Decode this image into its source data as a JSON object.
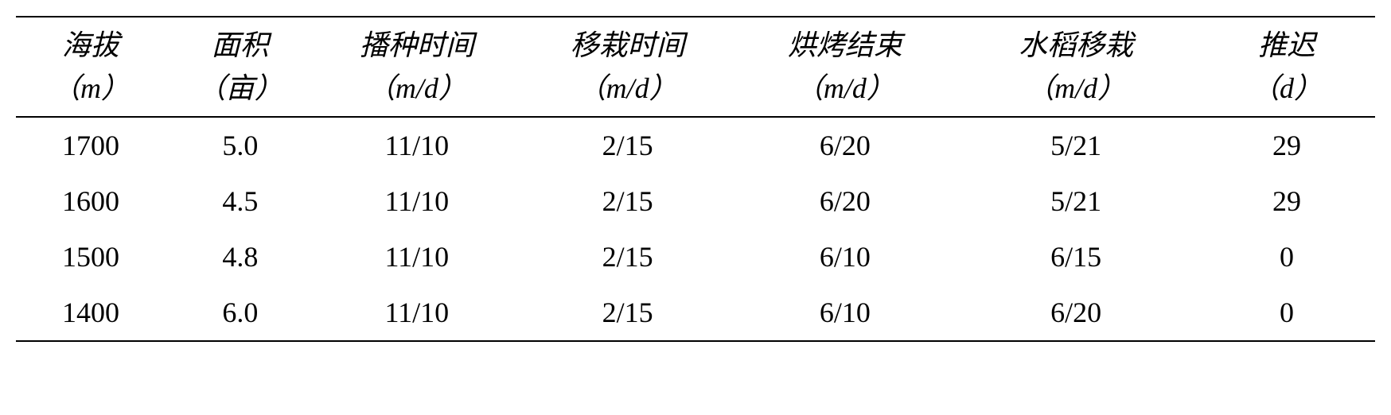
{
  "table": {
    "type": "table",
    "background_color": "#ffffff",
    "border_color": "#000000",
    "border_width": 2,
    "header_font": "KaiTi/STKaiti (italic Chinese serif)",
    "body_font": "Times New Roman / SimSun",
    "font_size": 36,
    "text_color": "#000000",
    "columns": [
      {
        "label": "海拔",
        "unit": "（m）",
        "width_pct": 11
      },
      {
        "label": "面积",
        "unit": "（亩）",
        "width_pct": 11
      },
      {
        "label": "播种时间",
        "unit": "（m/d）",
        "width_pct": 15
      },
      {
        "label": "移栽时间",
        "unit": "（m/d）",
        "width_pct": 16
      },
      {
        "label": "烘烤结束",
        "unit": "（m/d）",
        "width_pct": 16
      },
      {
        "label": "水稻移栽",
        "unit": "（m/d）",
        "width_pct": 18
      },
      {
        "label": "推迟",
        "unit": "（d）",
        "width_pct": 13
      }
    ],
    "rows": [
      [
        "1700",
        "5.0",
        "11/10",
        "2/15",
        "6/20",
        "5/21",
        "29"
      ],
      [
        "1600",
        "4.5",
        "11/10",
        "2/15",
        "6/20",
        "5/21",
        "29"
      ],
      [
        "1500",
        "4.8",
        "11/10",
        "2/15",
        "6/10",
        "6/15",
        "0"
      ],
      [
        "1400",
        "6.0",
        "11/10",
        "2/15",
        "6/10",
        "6/20",
        "0"
      ]
    ]
  }
}
